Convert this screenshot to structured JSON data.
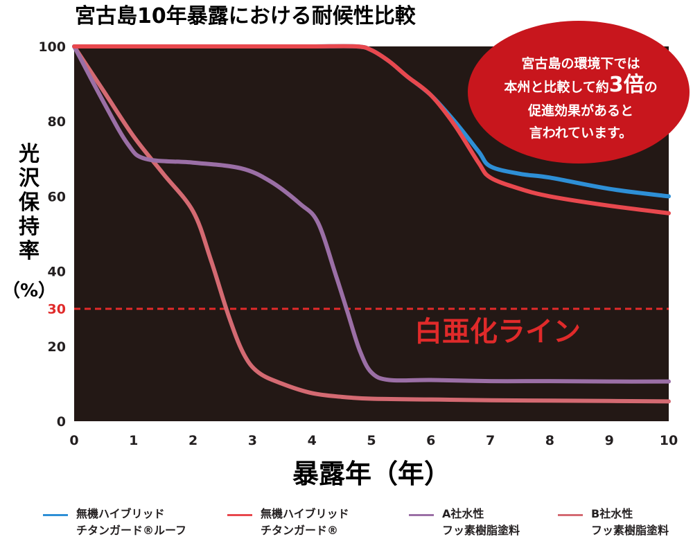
{
  "chart_data": {
    "type": "line",
    "title": "宮古島10年暴露における耐候性比較",
    "xlabel": "暴露年（年）",
    "ylabel_chars": [
      "光",
      "沢",
      "保",
      "持",
      "率",
      "（%）"
    ],
    "x_ticks": [
      "0",
      "1",
      "2",
      "3",
      "4",
      "5",
      "6",
      "7",
      "8",
      "9",
      "10"
    ],
    "y_ticks": [
      "0",
      "20",
      "30",
      "40",
      "60",
      "80",
      "100"
    ],
    "xlim": [
      0,
      10
    ],
    "ylim": [
      0,
      100
    ],
    "grid": false,
    "background": "#231815",
    "legend_position": "bottom",
    "threshold": {
      "y": 30,
      "label": "白亜化ライン",
      "color": "#e02a2a",
      "style": "dashed"
    },
    "callout": {
      "lines": [
        [
          {
            "text": "宮古島の環境下では",
            "big": false
          }
        ],
        [
          {
            "text": "本州と比較して約",
            "big": false
          },
          {
            "text": "3倍",
            "big": true
          },
          {
            "text": "の",
            "big": false
          }
        ],
        [
          {
            "text": "促進効果があると",
            "big": false
          }
        ],
        [
          {
            "text": "言われています。",
            "big": false
          }
        ]
      ],
      "color": "#c8161d"
    },
    "series": [
      {
        "name_lines": [
          "無機ハイブリッド",
          "チタンガード®ルーフ"
        ],
        "color": "#2e8fd6",
        "x": [
          0,
          1,
          2,
          3,
          4,
          4.75,
          5,
          5.3,
          5.6,
          6,
          6.4,
          6.8,
          7,
          7.5,
          8,
          9,
          10
        ],
        "y": [
          100,
          100,
          100,
          100,
          100,
          100,
          99,
          96,
          92,
          87,
          80,
          72,
          68,
          66,
          65,
          62,
          60
        ]
      },
      {
        "name_lines": [
          "無機ハイブリッド",
          "チタンガード®"
        ],
        "color": "#e8484e",
        "x": [
          0,
          1,
          2,
          3,
          4,
          4.75,
          5,
          5.3,
          5.6,
          6,
          6.4,
          6.8,
          7,
          7.5,
          8,
          9,
          10
        ],
        "y": [
          100,
          100,
          100,
          100,
          100,
          100,
          99,
          96,
          92,
          87,
          79,
          69,
          65,
          62,
          60,
          57.5,
          55.5
        ]
      },
      {
        "name_lines": [
          "A社水性",
          "フッ素樹脂塗料"
        ],
        "color": "#9b6fa6",
        "x": [
          0,
          0.5,
          0.9,
          1.2,
          2,
          2.8,
          3.3,
          3.8,
          4.1,
          4.4,
          4.6,
          4.8,
          5,
          5.3,
          6,
          7,
          8,
          9,
          10
        ],
        "y": [
          100,
          85,
          74,
          70,
          69,
          67.5,
          64,
          58,
          53,
          39,
          29,
          19,
          13,
          11,
          11,
          10.7,
          10.7,
          10.6,
          10.6
        ]
      },
      {
        "name_lines": [
          "B社水性",
          "フッ素樹脂塗料"
        ],
        "color": "#d46a72",
        "x": [
          0,
          0.5,
          1,
          1.5,
          2,
          2.3,
          2.6,
          2.85,
          3.1,
          3.5,
          4,
          4.5,
          5,
          6,
          7,
          8,
          9,
          10
        ],
        "y": [
          100,
          88,
          76,
          66,
          56,
          43,
          28,
          18,
          13,
          10,
          7.5,
          6.5,
          6,
          5.8,
          5.6,
          5.5,
          5.4,
          5.3
        ]
      }
    ]
  }
}
